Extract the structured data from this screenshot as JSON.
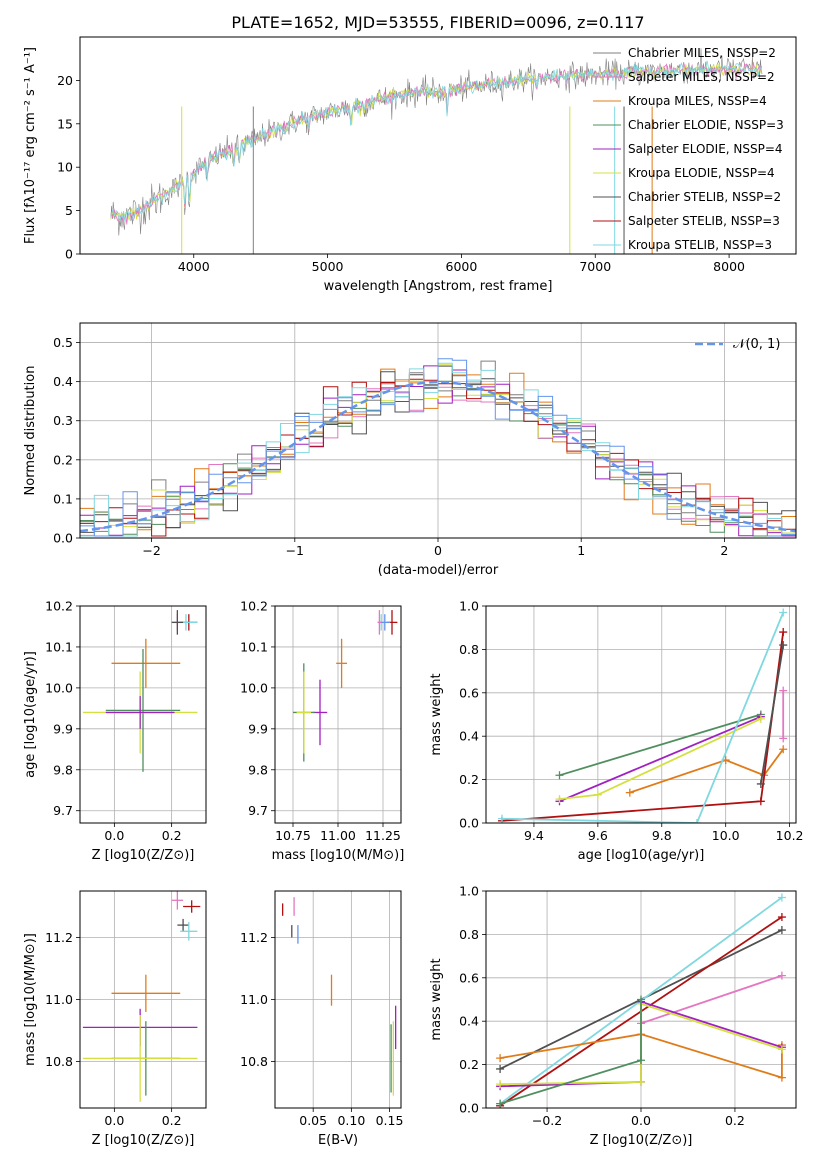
{
  "title": "PLATE=1652, MJD=53555, FIBERID=0096, z=0.117",
  "colors": {
    "chabrier_miles": "#7f7f7f",
    "salpeter_miles": "#e377c2",
    "kroupa_miles": "#e07b1a",
    "chabrier_elodie": "#4f8f5f",
    "salpeter_elodie": "#a020c0",
    "kroupa_elodie": "#d4e040",
    "chabrier_stelib": "#505050",
    "salpeter_stelib": "#b01010",
    "kroupa_stelib": "#80d8e0",
    "gauss": "#6495ed"
  },
  "chart_data": [
    {
      "id": "spectrum",
      "type": "line",
      "title": "PLATE=1652, MJD=53555, FIBERID=0096, z=0.117",
      "xlabel": "wavelength [Angstrom, rest frame]",
      "ylabel": "Flux [fλ10⁻¹⁷ erg cm⁻² s⁻¹ A⁻¹]",
      "xlim": [
        3150,
        8500
      ],
      "ylim": [
        0,
        25
      ],
      "xticks": [
        "4000",
        "5000",
        "6000",
        "7000",
        "8000"
      ],
      "yticks": [
        "0",
        "5",
        "10",
        "15",
        "20"
      ],
      "grid": false,
      "legend_position": "right",
      "legend": [
        "Chabrier MILES, NSSP=2",
        "Salpeter MILES, NSSP=2",
        "Kroupa MILES, NSSP=4",
        "Chabrier ELODIE, NSSP=3",
        "Salpeter ELODIE, NSSP=4",
        "Kroupa ELODIE, NSSP=4",
        "Chabrier STELIB, NSSP=2",
        "Salpeter STELIB, NSSP=3",
        "Kroupa STELIB, NSSP=3"
      ],
      "continuum": {
        "x": [
          3380,
          3500,
          3700,
          3900,
          4000,
          4200,
          4500,
          4800,
          5000,
          5300,
          5600,
          5900,
          6200,
          6500,
          6800,
          7100,
          7400,
          7700,
          8000,
          8250
        ],
        "y": [
          4.5,
          4.3,
          6.0,
          8.0,
          9.5,
          11.5,
          13.5,
          15.5,
          16.3,
          17.5,
          18.5,
          18.8,
          19.5,
          20.2,
          20.5,
          20.8,
          21.0,
          21.2,
          21.3,
          21.3
        ]
      }
    },
    {
      "id": "residuals",
      "type": "line",
      "xlabel": "(data-model)/error",
      "ylabel": "Normed distribution",
      "xlim": [
        -2.5,
        2.5
      ],
      "ylim": [
        0,
        0.55
      ],
      "xticks": [
        "−2",
        "−1",
        "0",
        "1",
        "2"
      ],
      "yticks": [
        "0.0",
        "0.1",
        "0.2",
        "0.3",
        "0.4",
        "0.5"
      ],
      "grid": true,
      "legend_position": "top-right",
      "legend": [
        "𝒩(0, 1)"
      ],
      "gauss": {
        "mu": 0,
        "sigma": 1
      }
    },
    {
      "id": "age_vs_Z",
      "type": "scatter",
      "xlabel": "Z [log10(Z/Z⊙)]",
      "ylabel": "age  [log10(age/yr)]",
      "xlim": [
        -0.12,
        0.32
      ],
      "ylim": [
        9.67,
        10.2
      ],
      "xticks": [
        "0.0",
        "0.2"
      ],
      "yticks": [
        "9.7",
        "9.8",
        "9.9",
        "10.0",
        "10.1",
        "10.2"
      ],
      "grid": true,
      "points": [
        {
          "x": 0.22,
          "y": 10.16,
          "xe": 0.02,
          "ye": 0.02,
          "color": "#e377c2"
        },
        {
          "x": 0.26,
          "y": 10.16,
          "xe": 0.03,
          "ye": 0.02,
          "color": "#b01010"
        },
        {
          "x": 0.25,
          "y": 10.16,
          "xe": 0.04,
          "ye": 0.02,
          "color": "#80d8e0"
        },
        {
          "x": 0.22,
          "y": 10.16,
          "xe": 0.02,
          "ye": 0.03,
          "color": "#505050"
        },
        {
          "x": 0.11,
          "y": 10.06,
          "xe": 0.12,
          "ye": 0.06,
          "color": "#e07b1a"
        },
        {
          "x": 0.1,
          "y": 9.945,
          "xe": 0.13,
          "ye": 0.15,
          "color": "#4f8f5f"
        },
        {
          "x": 0.09,
          "y": 9.94,
          "xe": 0.2,
          "ye": 0.1,
          "color": "#d4e040"
        },
        {
          "x": 0.09,
          "y": 9.94,
          "xe": 0.12,
          "ye": 0.04,
          "color": "#a020c0"
        }
      ]
    },
    {
      "id": "age_vs_mass",
      "type": "scatter",
      "xlabel": "mass [log10(M/M⊙)]",
      "xlim": [
        10.65,
        11.35
      ],
      "ylim": [
        9.67,
        10.2
      ],
      "xticks": [
        "10.75",
        "11.00",
        "11.25"
      ],
      "yticks": [
        "9.7",
        "9.8",
        "9.9",
        "10.0",
        "10.1",
        "10.2"
      ],
      "grid": true,
      "points": [
        {
          "x": 11.3,
          "y": 10.16,
          "xe": 0.03,
          "ye": 0.03,
          "color": "#b01010"
        },
        {
          "x": 11.24,
          "y": 10.16,
          "xe": 0.02,
          "ye": 0.02,
          "color": "#80d8e0"
        },
        {
          "x": 11.26,
          "y": 10.16,
          "xe": 0.03,
          "ye": 0.02,
          "color": "#6495ed"
        },
        {
          "x": 11.23,
          "y": 10.16,
          "xe": 0.01,
          "ye": 0.03,
          "color": "#e377c2"
        },
        {
          "x": 11.02,
          "y": 10.06,
          "xe": 0.03,
          "ye": 0.06,
          "color": "#e07b1a"
        },
        {
          "x": 10.9,
          "y": 9.94,
          "xe": 0.04,
          "ye": 0.08,
          "color": "#a020c0"
        },
        {
          "x": 10.81,
          "y": 9.94,
          "xe": 0.06,
          "ye": 0.12,
          "color": "#4f8f5f"
        },
        {
          "x": 10.81,
          "y": 9.94,
          "xe": 0.04,
          "ye": 0.1,
          "color": "#d4e040"
        }
      ]
    },
    {
      "id": "massweight_vs_age",
      "type": "line",
      "xlabel": "age  [log10(age/yr)]",
      "ylabel": "mass weight",
      "xlim": [
        9.25,
        10.22
      ],
      "ylim": [
        0,
        1.0
      ],
      "xticks": [
        "9.4",
        "9.6",
        "9.8",
        "10.0",
        "10.2"
      ],
      "yticks": [
        "0.0",
        "0.2",
        "0.4",
        "0.6",
        "0.8",
        "1.0"
      ],
      "grid": true,
      "series": [
        {
          "color": "#4f8f5f",
          "x": [
            9.48,
            10.11
          ],
          "y": [
            0.22,
            0.5
          ]
        },
        {
          "color": "#a020c0",
          "x": [
            9.48,
            10.11
          ],
          "y": [
            0.1,
            0.49
          ]
        },
        {
          "color": "#d4e040",
          "x": [
            9.48,
            9.6,
            10.11
          ],
          "y": [
            0.11,
            0.13,
            0.48
          ]
        },
        {
          "color": "#e07b1a",
          "x": [
            9.7,
            10.0,
            10.12,
            10.18
          ],
          "y": [
            0.14,
            0.29,
            0.22,
            0.34
          ]
        },
        {
          "color": "#b01010",
          "x": [
            9.3,
            10.11,
            10.18
          ],
          "y": [
            0.01,
            0.1,
            0.88
          ]
        },
        {
          "color": "#80d8e0",
          "x": [
            9.3,
            9.91,
            10.18
          ],
          "y": [
            0.02,
            0.0,
            0.97
          ]
        },
        {
          "color": "#505050",
          "x": [
            10.11,
            10.18
          ],
          "y": [
            0.18,
            0.82
          ]
        },
        {
          "color": "#e377c2",
          "x": [
            10.18,
            10.18
          ],
          "y": [
            0.39,
            0.61
          ]
        }
      ]
    },
    {
      "id": "mass_vs_Z",
      "type": "scatter",
      "xlabel": "Z [log10(Z/Z⊙)]",
      "ylabel": "mass [log10(M/M⊙)]",
      "xlim": [
        -0.12,
        0.32
      ],
      "ylim": [
        10.65,
        11.35
      ],
      "xticks": [
        "0.0",
        "0.2"
      ],
      "yticks": [
        "10.8",
        "11.0",
        "11.2"
      ],
      "grid": true,
      "points": [
        {
          "x": 0.22,
          "y": 11.32,
          "xe": 0.02,
          "ye": 0.03,
          "color": "#e377c2"
        },
        {
          "x": 0.27,
          "y": 11.3,
          "xe": 0.03,
          "ye": 0.02,
          "color": "#b01010"
        },
        {
          "x": 0.24,
          "y": 11.24,
          "xe": 0.02,
          "ye": 0.02,
          "color": "#505050"
        },
        {
          "x": 0.26,
          "y": 11.22,
          "xe": 0.03,
          "ye": 0.03,
          "color": "#80d8e0"
        },
        {
          "x": 0.11,
          "y": 11.02,
          "xe": 0.12,
          "ye": 0.06,
          "color": "#e07b1a"
        },
        {
          "x": 0.09,
          "y": 10.91,
          "xe": 0.2,
          "ye": 0.06,
          "color": "#a020c0"
        },
        {
          "x": 0.11,
          "y": 10.81,
          "xe": 0.12,
          "ye": 0.12,
          "color": "#4f8f5f"
        },
        {
          "x": 0.09,
          "y": 10.81,
          "xe": 0.2,
          "ye": 0.14,
          "color": "#d4e040"
        }
      ]
    },
    {
      "id": "mass_vs_ebv",
      "type": "scatter",
      "xlabel": "E(B-V)",
      "xlim": [
        0.0,
        0.165
      ],
      "ylim": [
        10.65,
        11.35
      ],
      "xticks": [
        "0.05",
        "0.10",
        "0.15"
      ],
      "yticks": [
        "10.8",
        "11.0",
        "11.2"
      ],
      "grid": true,
      "points": [
        {
          "x": 0.01,
          "y": 11.29,
          "xe": 0.0,
          "ye": 0.02,
          "color": "#b01010"
        },
        {
          "x": 0.025,
          "y": 11.3,
          "xe": 0.0,
          "ye": 0.03,
          "color": "#e377c2"
        },
        {
          "x": 0.022,
          "y": 11.22,
          "xe": 0.0,
          "ye": 0.02,
          "color": "#505050"
        },
        {
          "x": 0.03,
          "y": 11.21,
          "xe": 0.0,
          "ye": 0.03,
          "color": "#6495ed"
        },
        {
          "x": 0.074,
          "y": 11.03,
          "xe": 0.0,
          "ye": 0.05,
          "color": "#e07b1a"
        },
        {
          "x": 0.158,
          "y": 10.91,
          "xe": 0.0,
          "ye": 0.07,
          "color": "#a020c0"
        },
        {
          "x": 0.152,
          "y": 10.81,
          "xe": 0.0,
          "ye": 0.11,
          "color": "#4f8f5f"
        },
        {
          "x": 0.155,
          "y": 10.81,
          "xe": 0.0,
          "ye": 0.12,
          "color": "#d4e040"
        }
      ]
    },
    {
      "id": "massweight_vs_Z",
      "type": "line",
      "xlabel": "Z [log10(Z/Z⊙)]",
      "ylabel": "mass weight",
      "xlim": [
        -0.33,
        0.33
      ],
      "ylim": [
        0,
        1.0
      ],
      "xticks": [
        "−0.2",
        "0.0",
        "0.2"
      ],
      "yticks": [
        "0.0",
        "0.2",
        "0.4",
        "0.6",
        "0.8",
        "1.0"
      ],
      "grid": true,
      "series": [
        {
          "color": "#505050",
          "x": [
            -0.3,
            0.3
          ],
          "y": [
            0.18,
            0.82
          ]
        },
        {
          "color": "#b01010",
          "x": [
            -0.3,
            0.3
          ],
          "y": [
            0.01,
            0.88
          ]
        },
        {
          "color": "#80d8e0",
          "x": [
            -0.3,
            0.3
          ],
          "y": [
            0.02,
            0.97
          ]
        },
        {
          "color": "#e377c2",
          "x": [
            0.0,
            0.3
          ],
          "y": [
            0.39,
            0.61
          ]
        },
        {
          "color": "#e07b1a",
          "x": [
            -0.3,
            0.0,
            0.3,
            0.3
          ],
          "y": [
            0.23,
            0.34,
            0.14,
            0.29
          ]
        },
        {
          "color": "#a020c0",
          "x": [
            -0.3,
            0.0,
            0.0,
            0.3
          ],
          "y": [
            0.1,
            0.12,
            0.49,
            0.28
          ]
        },
        {
          "color": "#d4e040",
          "x": [
            -0.3,
            0.0,
            0.0,
            0.3
          ],
          "y": [
            0.11,
            0.12,
            0.48,
            0.27
          ]
        },
        {
          "color": "#4f8f5f",
          "x": [
            -0.3,
            0.0,
            0.0
          ],
          "y": [
            0.02,
            0.22,
            0.5
          ]
        }
      ]
    }
  ]
}
